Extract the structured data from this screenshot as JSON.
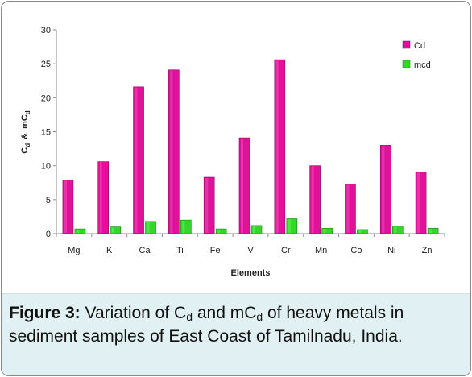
{
  "chart_data": {
    "type": "bar",
    "categories": [
      "Mg",
      "K",
      "Ca",
      "Ti",
      "Fe",
      "V",
      "Cr",
      "Mn",
      "Co",
      "Ni",
      "Zn"
    ],
    "series": [
      {
        "name": "Cd",
        "color": "#e0129a",
        "values": [
          7.9,
          10.6,
          21.6,
          24.1,
          8.3,
          14.1,
          25.6,
          10.0,
          7.3,
          13.0,
          9.1
        ]
      },
      {
        "name": "mcd",
        "color": "#33d62a",
        "values": [
          0.7,
          1.0,
          1.8,
          2.0,
          0.7,
          1.2,
          2.2,
          0.8,
          0.6,
          1.1,
          0.8
        ]
      }
    ],
    "xlabel": "Elements",
    "ylabel": "Cd & mCd",
    "ylim": [
      0,
      30
    ],
    "yticks": [
      "0",
      "5",
      "10",
      "15",
      "20",
      "25",
      "30"
    ],
    "grid": false,
    "legend": "top-right"
  },
  "ylabel_parts": {
    "c1": "C",
    "s1": "d",
    "amp": "&",
    "m": "mC",
    "s2": "d"
  },
  "caption": {
    "label": "Figure 3:",
    "t1": " Variation of C",
    "s1": "d",
    "t2": " and mC",
    "s2": "d",
    "t3": " of heavy metals in sediment samples of East Coast of Tamilnadu, India."
  }
}
